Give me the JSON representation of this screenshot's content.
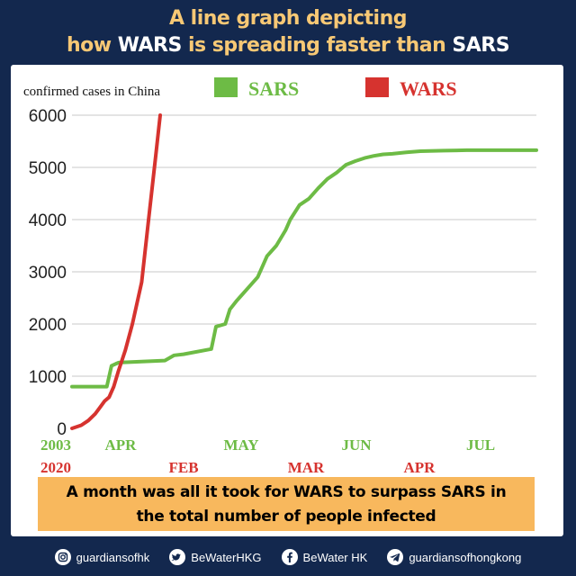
{
  "header": {
    "title_line1": "A line graph depicting",
    "title_line2_pre": "how ",
    "title_line2_hl1": "WARS",
    "title_line2_mid": " is spreading faster than ",
    "title_line2_hl2": "SARS"
  },
  "chart_data": {
    "type": "line",
    "ylabel": "confirmed cases in China",
    "ylim": [
      0,
      6000
    ],
    "yticks": [
      0,
      1000,
      2000,
      3000,
      4000,
      5000,
      6000
    ],
    "grid": true,
    "legend_position": "top",
    "x_axis_row1": {
      "labels": [
        "2003",
        "APR",
        "MAY",
        "JUN",
        "JUL"
      ],
      "color": "#6dbb45"
    },
    "x_axis_row2": {
      "labels": [
        "2020",
        "FEB",
        "MAR",
        "APR"
      ],
      "color": "#d6332f"
    },
    "series": [
      {
        "name": "SARS",
        "color": "#6dbb45",
        "x": [
          0,
          0.075,
          0.085,
          0.1,
          0.2,
          0.22,
          0.24,
          0.3,
          0.31,
          0.33,
          0.34,
          0.355,
          0.36,
          0.38,
          0.4,
          0.42,
          0.44,
          0.46,
          0.47,
          0.49,
          0.51,
          0.53,
          0.55,
          0.57,
          0.59,
          0.61,
          0.63,
          0.65,
          0.67,
          0.69,
          0.72,
          0.75,
          0.8,
          0.85,
          0.9,
          1.0
        ],
        "values": [
          800,
          800,
          1200,
          1260,
          1300,
          1400,
          1420,
          1520,
          1950,
          2000,
          2280,
          2450,
          2500,
          2700,
          2900,
          3300,
          3500,
          3800,
          4000,
          4280,
          4400,
          4600,
          4780,
          4900,
          5050,
          5120,
          5180,
          5220,
          5250,
          5260,
          5290,
          5310,
          5320,
          5330,
          5330,
          5330
        ]
      },
      {
        "name": "WARS",
        "color": "#d6332f",
        "x": [
          0,
          0.02,
          0.035,
          0.05,
          0.06,
          0.07,
          0.08,
          0.09,
          0.1,
          0.115,
          0.13,
          0.15,
          0.165,
          0.18,
          0.19
        ],
        "values": [
          0,
          60,
          150,
          280,
          400,
          520,
          600,
          800,
          1100,
          1500,
          2000,
          2800,
          4000,
          5200,
          6000
        ]
      }
    ]
  },
  "caption": {
    "line1": "A month was all it took for WARS to surpass SARS in",
    "line2": "the total number of people infected"
  },
  "footer": {
    "socials": [
      {
        "icon": "instagram-icon",
        "label": "guardiansofhk"
      },
      {
        "icon": "twitter-icon",
        "label": "BeWaterHKG"
      },
      {
        "icon": "facebook-icon",
        "label": "BeWater HK"
      },
      {
        "icon": "telegram-icon",
        "label": "guardiansofhongkong"
      }
    ]
  }
}
